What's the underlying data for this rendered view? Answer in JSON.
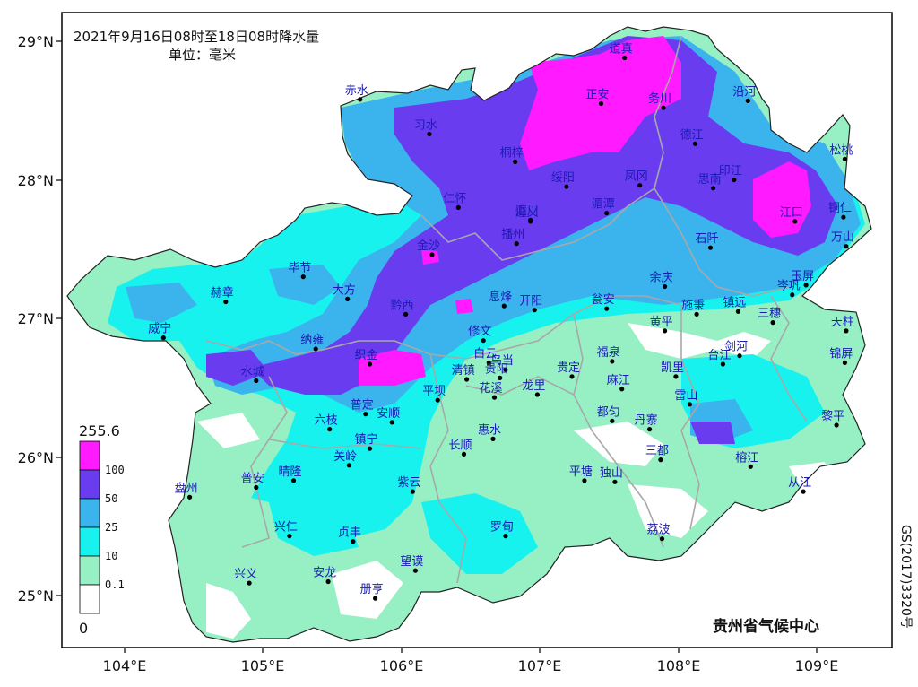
{
  "title": {
    "line1": "2021年9月16日08时至18日08时降水量",
    "line2": "单位：毫米"
  },
  "credit": "贵州省气候中心",
  "approval_code": "GS(2017)3320号",
  "axes": {
    "lat_labels": [
      "29°N",
      "28°N",
      "27°N",
      "26°N",
      "25°N"
    ],
    "lon_labels": [
      "104°E",
      "105°E",
      "106°E",
      "107°E",
      "108°E",
      "109°E"
    ]
  },
  "legend": {
    "max_label": "255.6",
    "min_label": "0",
    "levels": [
      {
        "label": "100",
        "color": "#ff1aff"
      },
      {
        "label": "50",
        "color": "#6a3cf0"
      },
      {
        "label": "25",
        "color": "#3bb4ee"
      },
      {
        "label": "10",
        "color": "#18f2ee"
      },
      {
        "label": "0.1",
        "color": "#96f0c4"
      },
      {
        "label": "",
        "color": "#ffffff"
      }
    ]
  },
  "colors": {
    "rain_100": "#ff1aff",
    "rain_50": "#6a3cf0",
    "rain_25": "#3bb4ee",
    "rain_10": "#18f2ee",
    "rain_01": "#96f0c4",
    "rain_0": "#ffffff",
    "boundary": "#a8a8a8",
    "label": "#1a1ab4"
  },
  "cities": [
    {
      "name": "道真",
      "lon": 107.61,
      "lat": 28.88
    },
    {
      "name": "赤水",
      "lon": 105.7,
      "lat": 28.58
    },
    {
      "name": "习水",
      "lon": 106.2,
      "lat": 28.33
    },
    {
      "name": "正安",
      "lon": 107.44,
      "lat": 28.55
    },
    {
      "name": "务川",
      "lon": 107.89,
      "lat": 28.52
    },
    {
      "name": "沿河",
      "lon": 108.5,
      "lat": 28.57
    },
    {
      "name": "桐梓",
      "lon": 106.82,
      "lat": 28.13
    },
    {
      "name": "德江",
      "lon": 108.12,
      "lat": 28.26
    },
    {
      "name": "松桃",
      "lon": 109.2,
      "lat": 28.15
    },
    {
      "name": "仁怀",
      "lon": 106.41,
      "lat": 27.8
    },
    {
      "name": "绥阳",
      "lon": 107.19,
      "lat": 27.95
    },
    {
      "name": "湄潭",
      "lon": 107.48,
      "lat": 27.76
    },
    {
      "name": "凤冈",
      "lon": 107.72,
      "lat": 27.96
    },
    {
      "name": "思南",
      "lon": 108.25,
      "lat": 27.94
    },
    {
      "name": "印江",
      "lon": 108.4,
      "lat": 28.0
    },
    {
      "name": "江口",
      "lon": 108.84,
      "lat": 27.7
    },
    {
      "name": "铜仁",
      "lon": 109.19,
      "lat": 27.73
    },
    {
      "name": "遵义",
      "lon": 106.93,
      "lat": 27.7
    },
    {
      "name": "汇川",
      "lon": 106.93,
      "lat": 27.71
    },
    {
      "name": "播州",
      "lon": 106.83,
      "lat": 27.54
    },
    {
      "name": "石阡",
      "lon": 108.23,
      "lat": 27.51
    },
    {
      "name": "万山",
      "lon": 109.21,
      "lat": 27.52
    },
    {
      "name": "金沙",
      "lon": 106.22,
      "lat": 27.46
    },
    {
      "name": "毕节",
      "lon": 105.29,
      "lat": 27.3
    },
    {
      "name": "大方",
      "lon": 105.61,
      "lat": 27.14
    },
    {
      "name": "赫章",
      "lon": 104.73,
      "lat": 27.12
    },
    {
      "name": "黔西",
      "lon": 106.03,
      "lat": 27.03
    },
    {
      "name": "息烽",
      "lon": 106.74,
      "lat": 27.09
    },
    {
      "name": "开阳",
      "lon": 106.96,
      "lat": 27.06
    },
    {
      "name": "瓮安",
      "lon": 107.48,
      "lat": 27.07
    },
    {
      "name": "余庆",
      "lon": 107.9,
      "lat": 27.23
    },
    {
      "name": "施秉",
      "lon": 108.13,
      "lat": 27.03
    },
    {
      "name": "镇远",
      "lon": 108.43,
      "lat": 27.05
    },
    {
      "name": "岑巩",
      "lon": 108.82,
      "lat": 27.17
    },
    {
      "name": "玉屏",
      "lon": 108.92,
      "lat": 27.24
    },
    {
      "name": "三穗",
      "lon": 108.68,
      "lat": 26.97
    },
    {
      "name": "威宁",
      "lon": 104.28,
      "lat": 26.86
    },
    {
      "name": "纳雍",
      "lon": 105.38,
      "lat": 26.78
    },
    {
      "name": "修文",
      "lon": 106.59,
      "lat": 26.84
    },
    {
      "name": "黄平",
      "lon": 107.9,
      "lat": 26.91
    },
    {
      "name": "天柱",
      "lon": 109.21,
      "lat": 26.91
    },
    {
      "name": "织金",
      "lon": 105.77,
      "lat": 26.67
    },
    {
      "name": "白云",
      "lon": 106.63,
      "lat": 26.68
    },
    {
      "name": "乌当",
      "lon": 106.75,
      "lat": 26.63
    },
    {
      "name": "福泉",
      "lon": 107.52,
      "lat": 26.69
    },
    {
      "name": "凯里",
      "lon": 107.98,
      "lat": 26.58
    },
    {
      "name": "台江",
      "lon": 108.32,
      "lat": 26.67
    },
    {
      "name": "剑河",
      "lon": 108.44,
      "lat": 26.73
    },
    {
      "name": "锦屏",
      "lon": 109.2,
      "lat": 26.68
    },
    {
      "name": "水城",
      "lon": 104.95,
      "lat": 26.55
    },
    {
      "name": "清镇",
      "lon": 106.47,
      "lat": 26.56
    },
    {
      "name": "贵阳",
      "lon": 106.71,
      "lat": 26.57
    },
    {
      "name": "贵定",
      "lon": 107.23,
      "lat": 26.58
    },
    {
      "name": "麻江",
      "lon": 107.59,
      "lat": 26.49
    },
    {
      "name": "雷山",
      "lon": 108.08,
      "lat": 26.38
    },
    {
      "name": "平坝",
      "lon": 106.26,
      "lat": 26.41
    },
    {
      "name": "花溪",
      "lon": 106.67,
      "lat": 26.43
    },
    {
      "name": "龙里",
      "lon": 106.98,
      "lat": 26.45
    },
    {
      "name": "都匀",
      "lon": 107.52,
      "lat": 26.26
    },
    {
      "name": "普定",
      "lon": 105.74,
      "lat": 26.31
    },
    {
      "name": "安顺",
      "lon": 105.93,
      "lat": 26.25
    },
    {
      "name": "丹寨",
      "lon": 107.79,
      "lat": 26.2
    },
    {
      "name": "六枝",
      "lon": 105.48,
      "lat": 26.2
    },
    {
      "name": "黎平",
      "lon": 109.14,
      "lat": 26.23
    },
    {
      "name": "惠水",
      "lon": 106.66,
      "lat": 26.13
    },
    {
      "name": "镇宁",
      "lon": 105.77,
      "lat": 26.06
    },
    {
      "name": "长顺",
      "lon": 106.45,
      "lat": 26.02
    },
    {
      "name": "三都",
      "lon": 107.87,
      "lat": 25.98
    },
    {
      "name": "关岭",
      "lon": 105.62,
      "lat": 25.94
    },
    {
      "name": "榕江",
      "lon": 108.52,
      "lat": 25.93
    },
    {
      "name": "平塘",
      "lon": 107.32,
      "lat": 25.83
    },
    {
      "name": "独山",
      "lon": 107.54,
      "lat": 25.82
    },
    {
      "name": "晴隆",
      "lon": 105.22,
      "lat": 25.83
    },
    {
      "name": "普安",
      "lon": 104.95,
      "lat": 25.78
    },
    {
      "name": "紫云",
      "lon": 106.08,
      "lat": 25.75
    },
    {
      "name": "盘州",
      "lon": 104.47,
      "lat": 25.71
    },
    {
      "name": "从江",
      "lon": 108.9,
      "lat": 25.75
    },
    {
      "name": "兴仁",
      "lon": 105.19,
      "lat": 25.43
    },
    {
      "name": "贞丰",
      "lon": 105.65,
      "lat": 25.39
    },
    {
      "name": "罗甸",
      "lon": 106.75,
      "lat": 25.43
    },
    {
      "name": "荔波",
      "lon": 107.88,
      "lat": 25.41
    },
    {
      "name": "望谟",
      "lon": 106.1,
      "lat": 25.18
    },
    {
      "name": "兴义",
      "lon": 104.9,
      "lat": 25.09
    },
    {
      "name": "安龙",
      "lon": 105.47,
      "lat": 25.1
    },
    {
      "name": "册亨",
      "lon": 105.81,
      "lat": 24.98
    }
  ]
}
